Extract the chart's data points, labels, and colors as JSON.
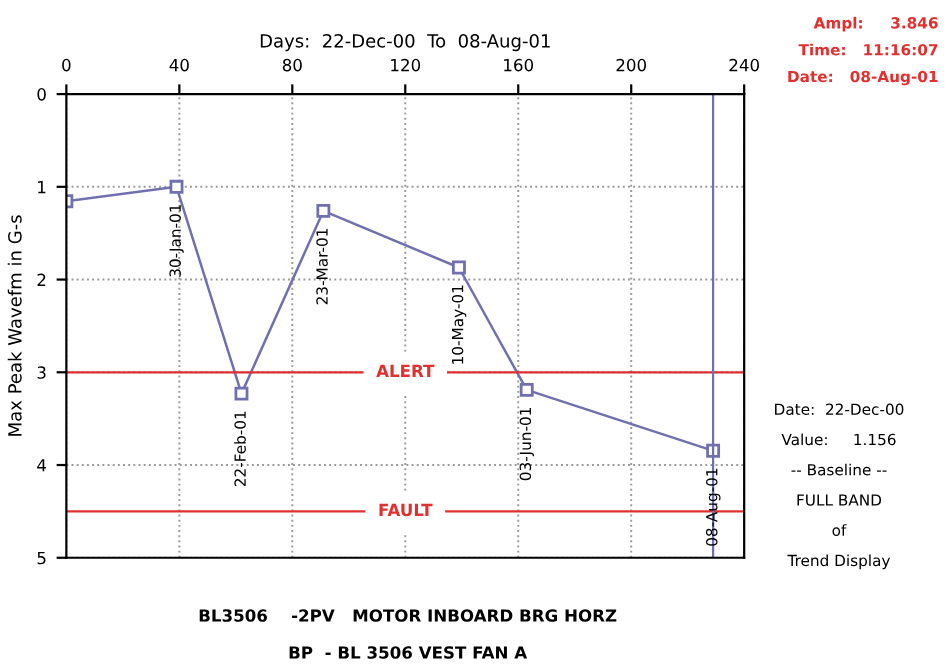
{
  "chart_data": {
    "type": "line",
    "title": "BP  - BL 3506 VEST FAN A",
    "subtitle": "BL3506    -2PV   MOTOR INBOARD BRG HORZ",
    "xlabel": "Days:  22-Dec-00  To  08-Aug-01",
    "ylabel": "Max Peak Wavefm in G-s",
    "series": [
      {
        "color": "#7070b0",
        "x": [
          0,
          39,
          62,
          91,
          139,
          163,
          229
        ],
        "values": [
          1.156,
          1.0,
          3.23,
          1.26,
          1.87,
          3.19,
          3.846
        ]
      }
    ],
    "xlim": [
      0,
      240
    ],
    "xticks": [
      0,
      40,
      80,
      120,
      160,
      200,
      240
    ],
    "ylim": [
      5,
      0
    ],
    "yticks": [
      0,
      1,
      2,
      3,
      4,
      5
    ],
    "marker": "square",
    "grid": true,
    "ref_lines": [
      {
        "axis": "y",
        "value": 3,
        "label": "ALERT",
        "color": "#e03030"
      },
      {
        "axis": "y",
        "value": 4.5,
        "label": "FAULT",
        "color": "#e03030"
      },
      {
        "axis": "x",
        "value": 229,
        "label": null,
        "color": "#7070b0"
      }
    ],
    "annotations": [
      {
        "text": "30-Jan-01",
        "x": 39,
        "y": 1.0
      },
      {
        "text": "22-Feb-01",
        "x": 62,
        "y": 3.23
      },
      {
        "text": "23-Mar-01",
        "x": 91,
        "y": 1.26
      },
      {
        "text": "10-May-01",
        "x": 139,
        "y": 1.87
      },
      {
        "text": "03-Jun-01",
        "x": 163,
        "y": 3.19
      },
      {
        "text": "08-Aug-01",
        "x": 229,
        "y": 3.846
      },
      "Ampl:     3.846",
      "Time:   11:16:07",
      "Date:   08-Aug-01",
      "Date:  22-Dec-00",
      "Value:     1.156",
      "-- Baseline --",
      "FULL BAND",
      "of",
      "Trend Display"
    ]
  }
}
